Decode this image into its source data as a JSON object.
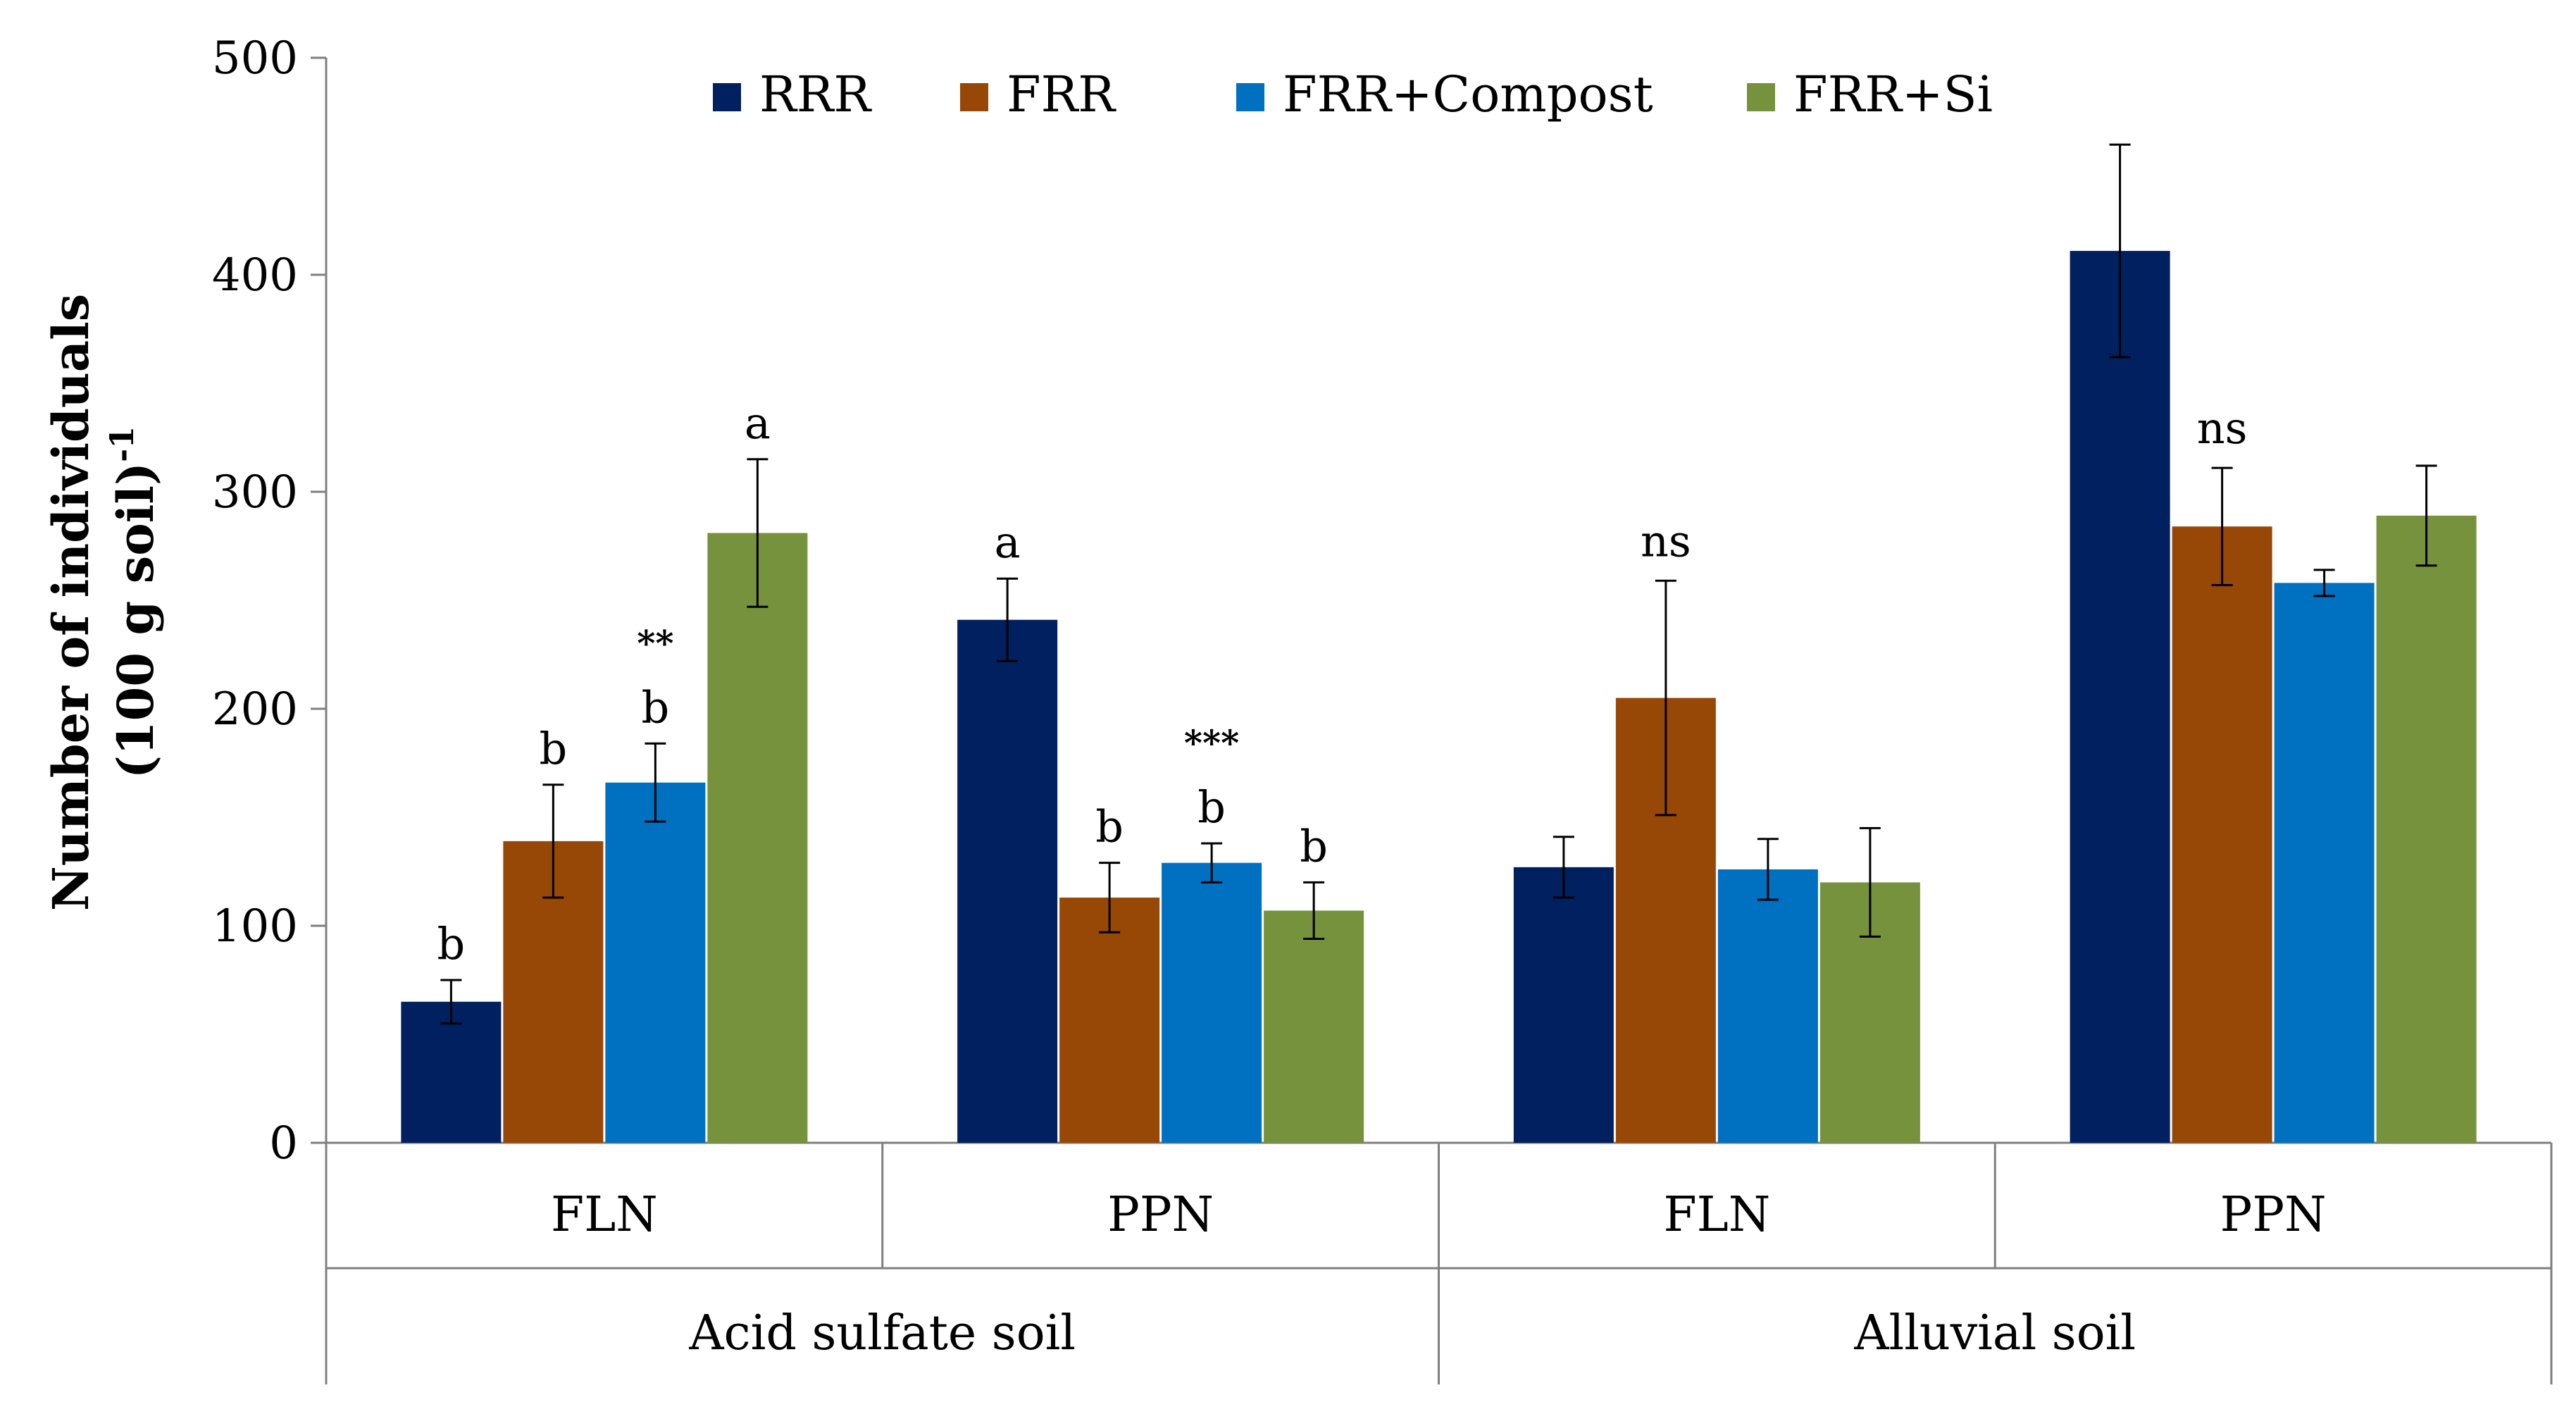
{
  "chart_data": {
    "type": "bar",
    "ylabel_line1": "Number of individuals",
    "ylabel_line2": "(100 g soil)",
    "ylabel_sup": "-1",
    "ylim": [
      0,
      500
    ],
    "yticks": [
      "0",
      "100",
      "200",
      "300",
      "400",
      "500"
    ],
    "groups": [
      {
        "name": "Acid sulfate soil",
        "categories": [
          "FLN",
          "PPN"
        ]
      },
      {
        "name": "Alluvial soil",
        "categories": [
          "FLN",
          "PPN"
        ]
      }
    ],
    "categories": [
      "FLN",
      "PPN",
      "FLN",
      "PPN"
    ],
    "series": [
      {
        "name": "RRR",
        "color": "#002060",
        "values": [
          65,
          241,
          127,
          411
        ],
        "errors": [
          10,
          19,
          14,
          49
        ]
      },
      {
        "name": "FRR",
        "color": "#974706",
        "values": [
          139,
          113,
          205,
          284
        ],
        "errors": [
          26,
          16,
          54,
          27
        ]
      },
      {
        "name": "FRR+Compost",
        "color": "#0070C0",
        "values": [
          166,
          129,
          126,
          258
        ],
        "errors": [
          18,
          9,
          14,
          6
        ]
      },
      {
        "name": "FRR+Si",
        "color": "#76923C",
        "values": [
          281,
          107,
          120,
          289
        ],
        "errors": [
          34,
          13,
          25,
          23
        ]
      }
    ],
    "bar_labels": [
      [
        "b",
        "b",
        "b",
        "a"
      ],
      [
        "a",
        "b",
        "b",
        "b"
      ],
      [
        "",
        "",
        "",
        ""
      ],
      [
        "",
        "",
        "",
        ""
      ]
    ],
    "significance": [
      {
        "category_index": 0,
        "series_index": 2,
        "text": "**"
      },
      {
        "category_index": 1,
        "series_index": 2,
        "text": "***"
      },
      {
        "category_index": 2,
        "series_index": 1,
        "text": "ns"
      },
      {
        "category_index": 3,
        "series_index": 1,
        "text": "ns"
      }
    ],
    "legend_position": "top"
  }
}
